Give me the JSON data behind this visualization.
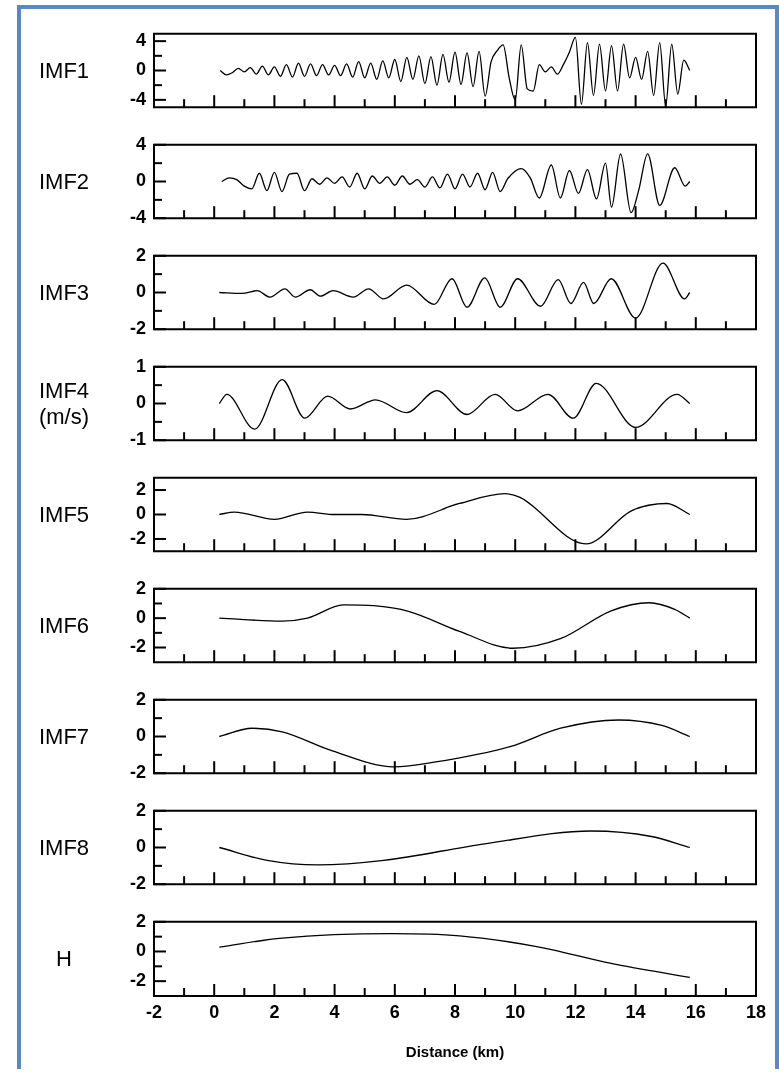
{
  "chart_data": [
    {
      "type": "line",
      "ylabel": "IMF1",
      "color": "#000000",
      "xlim": [
        -2,
        18
      ],
      "xticks": [
        -2,
        {
          "value": -1,
          "label": null
        },
        0,
        {
          "value": 1,
          "label": null
        },
        2,
        {
          "value": 3,
          "label": null
        },
        4,
        {
          "value": 5,
          "label": null
        },
        6,
        {
          "value": 7,
          "label": null
        },
        8,
        {
          "value": 9,
          "label": null
        },
        10,
        {
          "value": 11,
          "label": null
        },
        12,
        {
          "value": 13,
          "label": null
        },
        14,
        {
          "value": 15,
          "label": null
        },
        16,
        {
          "value": 17,
          "label": null
        },
        18
      ],
      "ylim": [
        -5,
        5
      ],
      "yticks": [
        -4,
        {
          "value": -2,
          "label": null
        },
        0,
        {
          "value": 2,
          "label": null
        },
        4
      ],
      "tick_labels": "y",
      "x": [
        0.2,
        0.4,
        0.6,
        0.8,
        1.0,
        1.2,
        1.4,
        1.6,
        1.8,
        2.0,
        2.2,
        2.4,
        2.6,
        2.8,
        3.0,
        3.2,
        3.4,
        3.6,
        3.8,
        4.0,
        4.2,
        4.4,
        4.6,
        4.8,
        5.0,
        5.2,
        5.4,
        5.6,
        5.8,
        6.0,
        6.2,
        6.4,
        6.6,
        6.8,
        7.0,
        7.2,
        7.4,
        7.6,
        7.8,
        8.0,
        8.2,
        8.4,
        8.6,
        8.8,
        9.0,
        9.2,
        9.4,
        9.6,
        9.8,
        10.0,
        10.2,
        10.4,
        10.6,
        10.8,
        11.0,
        11.2,
        11.4,
        11.6,
        11.8,
        12.0,
        12.2,
        12.4,
        12.6,
        12.8,
        13.0,
        13.2,
        13.4,
        13.6,
        13.8,
        14.0,
        14.2,
        14.4,
        14.6,
        14.8,
        15.0,
        15.2,
        15.4,
        15.6,
        15.8
      ],
      "values": [
        0,
        -0.6,
        -0.3,
        0.3,
        -0.2,
        0.4,
        -0.5,
        0.6,
        -0.6,
        0.5,
        -0.8,
        0.8,
        -0.9,
        1,
        -0.8,
        0.9,
        -0.7,
        0.8,
        -0.6,
        0.7,
        -0.7,
        0.9,
        -0.9,
        1.2,
        -1,
        1,
        -1.2,
        1.3,
        -1,
        1.5,
        -1.5,
        1.8,
        -1.2,
        2,
        -1.8,
        1.9,
        -2,
        2.2,
        -1.6,
        2.5,
        -1.9,
        2.4,
        -2.2,
        2.6,
        -3.5,
        1.2,
        2.7,
        3.5,
        -1,
        -4,
        3.5,
        -2.5,
        -2.8,
        0.8,
        -0.2,
        0.5,
        -0.5,
        0.8,
        2.5,
        4.5,
        -4.6,
        3.8,
        -3.4,
        3.6,
        -2.8,
        3.4,
        -2.8,
        3.6,
        -1,
        1.8,
        -1.2,
        2.6,
        -3.4,
        3.8,
        -4.8,
        3.6,
        -3.2,
        1.4,
        0
      ]
    },
    {
      "type": "line",
      "ylabel": "IMF2",
      "color": "#000000",
      "xlim": [
        -2,
        18
      ],
      "xticks": [
        -2,
        {
          "value": -1,
          "label": null
        },
        0,
        {
          "value": 1,
          "label": null
        },
        2,
        {
          "value": 3,
          "label": null
        },
        4,
        {
          "value": 5,
          "label": null
        },
        6,
        {
          "value": 7,
          "label": null
        },
        8,
        {
          "value": 9,
          "label": null
        },
        10,
        {
          "value": 11,
          "label": null
        },
        12,
        {
          "value": 13,
          "label": null
        },
        14,
        {
          "value": 15,
          "label": null
        },
        16,
        {
          "value": 17,
          "label": null
        },
        18
      ],
      "ylim": [
        -4,
        4
      ],
      "yticks": [
        -4,
        {
          "value": -2,
          "label": null
        },
        0,
        {
          "value": 2,
          "label": null
        },
        4
      ],
      "tick_labels": "y",
      "x": [
        0.25,
        0.5,
        0.75,
        1.0,
        1.25,
        1.5,
        1.75,
        2.0,
        2.25,
        2.5,
        2.75,
        3.0,
        3.25,
        3.5,
        3.75,
        4.0,
        4.25,
        4.5,
        4.75,
        5.0,
        5.25,
        5.5,
        5.75,
        6.0,
        6.25,
        6.5,
        6.75,
        7.0,
        7.25,
        7.5,
        7.75,
        8.0,
        8.25,
        8.5,
        8.75,
        9.0,
        9.25,
        9.5,
        9.75,
        10.2,
        10.5,
        10.8,
        11.2,
        11.5,
        11.8,
        12.1,
        12.4,
        12.7,
        13.0,
        13.2,
        13.5,
        13.85,
        14.1,
        14.4,
        14.8,
        15.3,
        15.65,
        15.8
      ],
      "values": [
        0,
        0.4,
        0.2,
        -0.5,
        -0.8,
        0.9,
        -1.0,
        1.0,
        -1.1,
        0.8,
        0.9,
        -1.0,
        0.3,
        -0.3,
        0.4,
        -0.2,
        0.5,
        -0.6,
        0.9,
        -0.8,
        0.6,
        -0.2,
        0.5,
        -0.4,
        0.6,
        -0.3,
        0.2,
        -0.6,
        0.5,
        -0.7,
        0.8,
        -0.8,
        0.8,
        -0.6,
        0.9,
        -0.9,
        1.0,
        -1.1,
        0.3,
        1.4,
        0.4,
        -1.8,
        1.8,
        -1.8,
        1.2,
        -1.3,
        1.3,
        -1.9,
        2.0,
        -2.8,
        3.0,
        -3.4,
        -1.0,
        3.0,
        -2.6,
        1.5,
        -0.5,
        0
      ]
    },
    {
      "type": "line",
      "ylabel": "IMF3",
      "color": "#000000",
      "xlim": [
        -2,
        18
      ],
      "xticks": [
        -2,
        {
          "value": -1,
          "label": null
        },
        0,
        {
          "value": 1,
          "label": null
        },
        2,
        {
          "value": 3,
          "label": null
        },
        4,
        {
          "value": 5,
          "label": null
        },
        6,
        {
          "value": 7,
          "label": null
        },
        8,
        {
          "value": 9,
          "label": null
        },
        10,
        {
          "value": 11,
          "label": null
        },
        12,
        {
          "value": 13,
          "label": null
        },
        14,
        {
          "value": 15,
          "label": null
        },
        16,
        {
          "value": 17,
          "label": null
        },
        18
      ],
      "ylim": [
        -2,
        2
      ],
      "yticks": [
        -2,
        {
          "value": -1,
          "label": null
        },
        0,
        {
          "value": 1,
          "label": null
        },
        2
      ],
      "tick_labels": "y",
      "x": [
        0.17,
        0.92,
        1.43,
        1.85,
        2.35,
        2.69,
        3.19,
        3.53,
        3.95,
        4.62,
        5.13,
        5.63,
        6.39,
        7.31,
        7.9,
        8.4,
        8.99,
        9.5,
        10.08,
        10.84,
        11.43,
        11.85,
        12.27,
        12.61,
        13.19,
        14.0,
        14.91,
        15.63,
        15.8
      ],
      "values": [
        0,
        -0.05,
        0.1,
        -0.25,
        0.2,
        -0.25,
        0.15,
        -0.2,
        0.1,
        -0.25,
        0.2,
        -0.35,
        0.4,
        -0.65,
        0.75,
        -0.8,
        0.8,
        -0.8,
        0.75,
        -0.75,
        0.7,
        -0.6,
        0.55,
        -0.6,
        0.75,
        -1.4,
        1.6,
        -0.35,
        0
      ]
    },
    {
      "type": "line",
      "ylabel": "IMF4\n(m/s)",
      "color": "#000000",
      "xlim": [
        -2,
        18
      ],
      "xticks": [
        -2,
        {
          "value": -1,
          "label": null
        },
        0,
        {
          "value": 1,
          "label": null
        },
        2,
        {
          "value": 3,
          "label": null
        },
        4,
        {
          "value": 5,
          "label": null
        },
        6,
        {
          "value": 7,
          "label": null
        },
        8,
        {
          "value": 9,
          "label": null
        },
        10,
        {
          "value": 11,
          "label": null
        },
        12,
        {
          "value": 13,
          "label": null
        },
        14,
        {
          "value": 15,
          "label": null
        },
        16,
        {
          "value": 17,
          "label": null
        },
        18
      ],
      "ylim": [
        -1,
        1
      ],
      "yticks": [
        -1,
        {
          "value": -0.5,
          "label": null
        },
        0,
        {
          "value": 0.5,
          "label": null
        },
        1
      ],
      "tick_labels": "y",
      "x": [
        0.17,
        0.42,
        1.34,
        2.26,
        3.01,
        3.77,
        4.52,
        5.36,
        6.39,
        7.4,
        8.4,
        9.33,
        10.08,
        11.09,
        11.93,
        12.69,
        14.0,
        15.38,
        15.8
      ],
      "values": [
        0,
        0.25,
        -0.7,
        0.65,
        -0.4,
        0.2,
        -0.15,
        0.1,
        -0.25,
        0.35,
        -0.3,
        0.25,
        -0.2,
        0.25,
        -0.4,
        0.55,
        -0.65,
        0.25,
        0
      ]
    },
    {
      "type": "line",
      "ylabel": "IMF5",
      "color": "#000000",
      "xlim": [
        -2,
        18
      ],
      "xticks": [
        -2,
        {
          "value": -1,
          "label": null
        },
        0,
        {
          "value": 1,
          "label": null
        },
        2,
        {
          "value": 3,
          "label": null
        },
        4,
        {
          "value": 5,
          "label": null
        },
        6,
        {
          "value": 7,
          "label": null
        },
        8,
        {
          "value": 9,
          "label": null
        },
        10,
        {
          "value": 11,
          "label": null
        },
        12,
        {
          "value": 13,
          "label": null
        },
        14,
        {
          "value": 15,
          "label": null
        },
        16,
        {
          "value": 17,
          "label": null
        },
        18
      ],
      "ylim": [
        -3,
        3
      ],
      "yticks": [
        -2,
        0,
        2
      ],
      "tick_labels": "y",
      "x": [
        0.17,
        0.67,
        2.0,
        3.1,
        4.0,
        4.9,
        6.39,
        8.15,
        9.66,
        10.16,
        12.35,
        13.86,
        15.04,
        15.8
      ],
      "values": [
        0,
        0.2,
        -0.4,
        0.2,
        0,
        0,
        -0.4,
        0.9,
        1.7,
        1.4,
        -2.4,
        0.3,
        0.9,
        0
      ]
    },
    {
      "type": "line",
      "ylabel": "IMF6",
      "color": "#000000",
      "xlim": [
        -2,
        18
      ],
      "xticks": [
        -2,
        {
          "value": -1,
          "label": null
        },
        0,
        {
          "value": 1,
          "label": null
        },
        2,
        {
          "value": 3,
          "label": null
        },
        4,
        {
          "value": 5,
          "label": null
        },
        6,
        {
          "value": 7,
          "label": null
        },
        8,
        {
          "value": 9,
          "label": null
        },
        10,
        {
          "value": 11,
          "label": null
        },
        12,
        {
          "value": 13,
          "label": null
        },
        14,
        {
          "value": 15,
          "label": null
        },
        16,
        {
          "value": 17,
          "label": null
        },
        18
      ],
      "ylim": [
        -3,
        2
      ],
      "yticks": [
        -2,
        {
          "value": -1,
          "label": null
        },
        0,
        {
          "value": 1,
          "label": null
        },
        2
      ],
      "tick_labels": "y",
      "x": [
        0.17,
        2.26,
        3.1,
        4.29,
        5.3,
        6.48,
        8.15,
        9.92,
        11.5,
        13.19,
        14.45,
        15.3,
        15.8
      ],
      "values": [
        0,
        -0.2,
        0,
        0.9,
        0.85,
        0.45,
        -0.9,
        -2.05,
        -1.4,
        0.5,
        1.05,
        0.6,
        0
      ]
    },
    {
      "type": "line",
      "ylabel": "IMF7",
      "color": "#000000",
      "xlim": [
        -2,
        18
      ],
      "xticks": [
        -2,
        {
          "value": -1,
          "label": null
        },
        0,
        {
          "value": 1,
          "label": null
        },
        2,
        {
          "value": 3,
          "label": null
        },
        4,
        {
          "value": 5,
          "label": null
        },
        6,
        {
          "value": 7,
          "label": null
        },
        8,
        {
          "value": 9,
          "label": null
        },
        10,
        {
          "value": 11,
          "label": null
        },
        12,
        {
          "value": 13,
          "label": null
        },
        14,
        {
          "value": 15,
          "label": null
        },
        16,
        {
          "value": 17,
          "label": null
        },
        18
      ],
      "ylim": [
        -2,
        2
      ],
      "yticks": [
        -2,
        {
          "value": -1,
          "label": null
        },
        0,
        {
          "value": 1,
          "label": null
        },
        2
      ],
      "tick_labels": "y",
      "x": [
        0.17,
        1.26,
        2.26,
        3.95,
        5.97,
        7.31,
        9.83,
        11.51,
        13.44,
        14.87,
        15.8
      ],
      "values": [
        0,
        0.45,
        0.25,
        -0.8,
        -1.65,
        -1.4,
        -0.55,
        0.45,
        0.9,
        0.6,
        0
      ]
    },
    {
      "type": "line",
      "ylabel": "IMF8",
      "color": "#000000",
      "xlim": [
        -2,
        18
      ],
      "xticks": [
        -2,
        {
          "value": -1,
          "label": null
        },
        0,
        {
          "value": 1,
          "label": null
        },
        2,
        {
          "value": 3,
          "label": null
        },
        4,
        {
          "value": 5,
          "label": null
        },
        6,
        {
          "value": 7,
          "label": null
        },
        8,
        {
          "value": 9,
          "label": null
        },
        10,
        {
          "value": 11,
          "label": null
        },
        12,
        {
          "value": 13,
          "label": null
        },
        14,
        {
          "value": 15,
          "label": null
        },
        16,
        {
          "value": 17,
          "label": null
        },
        18
      ],
      "ylim": [
        -2,
        2
      ],
      "yticks": [
        -2,
        {
          "value": -1,
          "label": null
        },
        0,
        {
          "value": 1,
          "label": null
        },
        2
      ],
      "tick_labels": "y",
      "x": [
        0.17,
        1.76,
        3.44,
        5.63,
        8.99,
        12.52,
        14.53,
        15.8
      ],
      "values": [
        0,
        -0.7,
        -0.95,
        -0.7,
        0.2,
        0.9,
        0.6,
        0
      ]
    },
    {
      "type": "line",
      "ylabel": "H",
      "xlabel": "Distance (km)",
      "color": "#000000",
      "xlim": [
        -2,
        18
      ],
      "xticks": [
        -2,
        {
          "value": -1,
          "label": null
        },
        0,
        {
          "value": 1,
          "label": null
        },
        2,
        {
          "value": 3,
          "label": null
        },
        4,
        {
          "value": 5,
          "label": null
        },
        6,
        {
          "value": 7,
          "label": null
        },
        8,
        {
          "value": 9,
          "label": null
        },
        10,
        {
          "value": 11,
          "label": null
        },
        12,
        {
          "value": 13,
          "label": null
        },
        14,
        {
          "value": 15,
          "label": null
        },
        16,
        {
          "value": 17,
          "label": null
        },
        18
      ],
      "ylim": [
        -3,
        2
      ],
      "yticks": [
        -2,
        {
          "value": -1,
          "label": null
        },
        0,
        {
          "value": 1,
          "label": null
        },
        2
      ],
      "x": [
        0.17,
        2.26,
        5.88,
        8.15,
        10.67,
        13.19,
        15.8
      ],
      "values": [
        0.3,
        0.9,
        1.2,
        1.05,
        0.35,
        -0.8,
        -1.75
      ]
    }
  ]
}
